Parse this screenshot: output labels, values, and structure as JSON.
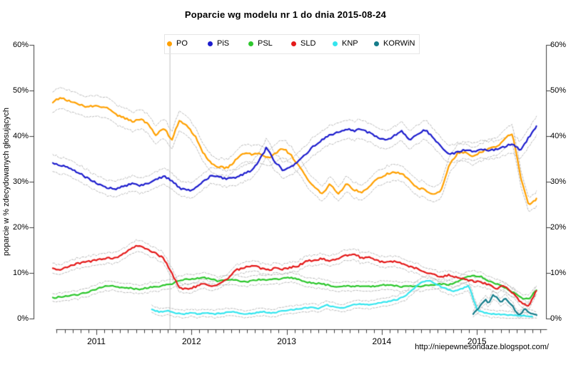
{
  "footer_url": "http://niepewnesondaze.blogspot.com/",
  "chart_data": {
    "type": "line",
    "title": "Poparcie wg modelu nr 1 do dnia 2015-08-24",
    "xlabel": "",
    "ylabel": "poparcie w % zdecydowanych głosujących",
    "ylim": [
      0,
      60
    ],
    "xlim_years": [
      2010.54,
      2015.73
    ],
    "grid": false,
    "legend_position": "top",
    "confidence_bands": true,
    "band_color": "#b0b0b0",
    "axis_color": "#3c3c3c",
    "event_line_year": 2011.77,
    "event_line_color": "#c9c9c9",
    "y_ticks": [
      0,
      10,
      20,
      30,
      40,
      50,
      60
    ],
    "y_tick_labels": [
      "0%",
      "10%",
      "20%",
      "30%",
      "40%",
      "50%",
      "60%"
    ],
    "x_tick_years": [
      2011,
      2012,
      2013,
      2014,
      2015
    ],
    "x_minor_ticks": "monthly",
    "series": [
      {
        "name": "PO",
        "color": "#FFA000",
        "x_start": 2010.542,
        "x_step": 0.083333,
        "values": [
          47.5,
          48.5,
          47.8,
          47.0,
          46.6,
          46.5,
          46.5,
          46.0,
          44.6,
          44.0,
          43.2,
          43.8,
          42.8,
          40.2,
          41.8,
          39.2,
          43.5,
          42.2,
          39.8,
          36.3,
          34.0,
          33.2,
          33.0,
          34.6,
          36.2,
          36.0,
          36.4,
          35.2,
          36.0,
          37.4,
          36.0,
          33.5,
          31.0,
          28.8,
          27.4,
          29.6,
          27.2,
          29.6,
          28.2,
          27.6,
          29.2,
          30.6,
          31.6,
          32.2,
          31.8,
          30.4,
          28.6,
          28.2,
          27.2,
          28.2,
          33.5,
          36.2,
          36.6,
          35.4,
          36.6,
          37.2,
          37.6,
          39.6,
          40.6,
          31.0,
          25.0,
          26.2
        ]
      },
      {
        "name": "PiS",
        "color": "#1C1CCD",
        "x_start": 2010.542,
        "x_step": 0.083333,
        "values": [
          34.0,
          33.6,
          33.0,
          32.2,
          31.2,
          30.2,
          29.2,
          28.6,
          28.4,
          29.0,
          29.6,
          29.2,
          29.6,
          30.6,
          31.2,
          30.2,
          28.6,
          28.0,
          28.6,
          30.0,
          31.4,
          31.0,
          30.6,
          31.0,
          31.6,
          32.4,
          34.6,
          37.6,
          34.4,
          32.6,
          33.2,
          34.6,
          36.2,
          38.0,
          39.2,
          40.2,
          41.0,
          41.6,
          41.2,
          41.6,
          40.6,
          39.6,
          39.0,
          40.0,
          41.0,
          39.2,
          40.6,
          41.4,
          39.6,
          37.6,
          36.2,
          36.4,
          37.0,
          36.6,
          37.0,
          36.8,
          37.2,
          37.6,
          38.4,
          36.8,
          39.6,
          42.2
        ]
      },
      {
        "name": "PSL",
        "color": "#2DC72D",
        "x_start": 2010.542,
        "x_step": 0.083333,
        "values": [
          4.5,
          4.8,
          5.0,
          5.2,
          5.6,
          6.2,
          6.8,
          7.2,
          7.0,
          6.8,
          6.6,
          6.4,
          6.8,
          7.0,
          7.2,
          7.6,
          8.4,
          8.6,
          8.8,
          9.0,
          8.6,
          8.2,
          8.6,
          8.4,
          8.0,
          8.2,
          8.6,
          8.4,
          8.6,
          8.8,
          9.0,
          8.6,
          8.0,
          7.8,
          7.6,
          7.2,
          7.0,
          7.2,
          7.0,
          7.2,
          7.0,
          7.2,
          7.4,
          7.2,
          7.0,
          7.2,
          7.0,
          7.2,
          7.4,
          7.6,
          7.4,
          8.0,
          9.0,
          9.4,
          9.2,
          8.2,
          7.6,
          6.8,
          5.8,
          4.6,
          4.2,
          6.3
        ]
      },
      {
        "name": "SLD",
        "color": "#E41A1A",
        "x_start": 2010.542,
        "x_step": 0.083333,
        "values": [
          11.0,
          10.6,
          11.4,
          12.0,
          12.4,
          12.6,
          13.0,
          13.4,
          13.2,
          14.4,
          15.6,
          16.0,
          15.2,
          14.2,
          13.2,
          10.0,
          6.6,
          6.4,
          7.0,
          7.6,
          7.2,
          7.6,
          8.6,
          10.6,
          11.0,
          11.6,
          11.2,
          10.6,
          11.0,
          10.8,
          11.2,
          11.6,
          12.6,
          12.8,
          13.2,
          12.6,
          13.2,
          13.8,
          14.2,
          13.2,
          13.6,
          12.6,
          12.2,
          12.6,
          12.0,
          11.4,
          11.0,
          10.2,
          9.6,
          9.2,
          9.6,
          9.0,
          8.6,
          8.2,
          8.0,
          7.4,
          6.6,
          7.2,
          5.6,
          3.6,
          2.6,
          6.2
        ]
      },
      {
        "name": "KNP",
        "color": "#35E5EE",
        "x_start": 2011.583,
        "x_step": 0.083333,
        "values": [
          2.0,
          1.4,
          1.8,
          1.2,
          1.0,
          1.2,
          1.0,
          1.3,
          1.0,
          1.2,
          1.5,
          1.2,
          1.0,
          1.2,
          1.5,
          1.2,
          1.5,
          1.8,
          2.0,
          2.2,
          2.5,
          2.2,
          3.0,
          2.5,
          2.3,
          2.8,
          3.2,
          3.0,
          3.2,
          3.5,
          3.8,
          4.2,
          5.0,
          6.5,
          8.0,
          8.4,
          7.4,
          6.6,
          6.0,
          6.5,
          7.2,
          2.0,
          1.2,
          1.0,
          0.9,
          0.8,
          0.7,
          0.6,
          0.5
        ]
      },
      {
        "name": "KORWiN",
        "color": "#157C8A",
        "x_start": 2014.96,
        "x_step": 0.0417,
        "values": [
          1.0,
          1.8,
          3.0,
          4.2,
          3.4,
          5.2,
          4.8,
          3.4,
          4.6,
          3.6,
          2.6,
          1.2,
          0.8,
          2.2,
          1.4,
          0.9,
          0.9
        ]
      }
    ]
  }
}
